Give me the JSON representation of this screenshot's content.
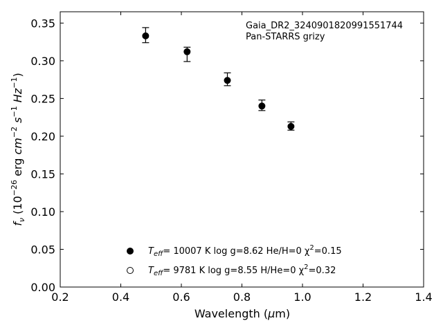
{
  "chart_data": {
    "type": "scatter",
    "xlabel": "Wavelength (μm)",
    "ylabel": "f_ν (10^-26 erg cm^-2 s^-1 Hz^-1)",
    "xlim": [
      0.2,
      1.4
    ],
    "ylim": [
      0.0,
      0.365
    ],
    "xticks": [
      0.2,
      0.4,
      0.6,
      0.8,
      1.0,
      1.2,
      1.4
    ],
    "xtick_labels": [
      "0.2",
      "0.4",
      "0.6",
      "0.8",
      "1.0",
      "1.2",
      "1.4"
    ],
    "yticks": [
      0.0,
      0.05,
      0.1,
      0.15,
      0.2,
      0.25,
      0.3,
      0.35
    ],
    "ytick_labels": [
      "0.00",
      "0.05",
      "0.10",
      "0.15",
      "0.20",
      "0.25",
      "0.30",
      "0.35"
    ],
    "grid": false,
    "annotation_lines": [
      "Gaia_DR2_3240901820991551744",
      "Pan-STARRS grizy"
    ],
    "series": [
      {
        "name": "T_eff= 10007 K  log g=8.62  He/H=0  χ²=0.15",
        "marker": "filled-circle",
        "x": [
          0.482,
          0.619,
          0.752,
          0.866,
          0.962
        ],
        "y": [
          0.333,
          0.312,
          0.274,
          0.24,
          0.213
        ],
        "err_low": [
          0.009,
          0.013,
          0.007,
          0.006,
          0.005
        ],
        "err_high": [
          0.011,
          0.006,
          0.01,
          0.008,
          0.006
        ]
      },
      {
        "name": "T_eff=  9781 K  log g=8.55  H/He=0  χ²=0.32",
        "marker": "open-circle",
        "x": [],
        "y": []
      }
    ],
    "legend": {
      "location": "lower-center",
      "entries": [
        {
          "teff": "= 10007 K  log g=8.62  He/H=0  χ",
          "chi": "=0.15"
        },
        {
          "teff": "=  9781 K  log g=8.55  H/He=0  χ",
          "chi": "=0.32"
        }
      ]
    }
  }
}
